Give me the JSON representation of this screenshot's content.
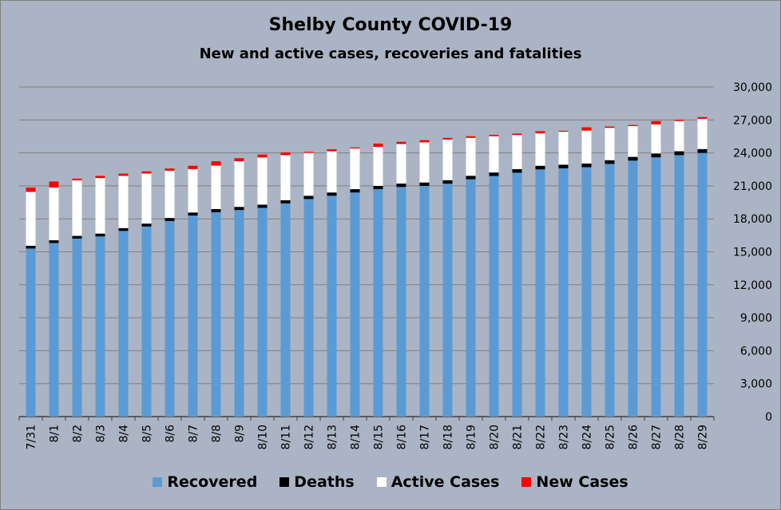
{
  "chart_data": {
    "type": "bar",
    "stacked": true,
    "title": "Shelby County COVID-19",
    "subtitle": "New and active cases, recoveries and fatalities",
    "categories": [
      "7/31",
      "8/1",
      "8/2",
      "8/3",
      "8/4",
      "8/5",
      "8/6",
      "8/7",
      "8/8",
      "8/9",
      "8/10",
      "8/11",
      "8/12",
      "8/13",
      "8/14",
      "8/15",
      "8/16",
      "8/17",
      "8/18",
      "8/19",
      "8/20",
      "8/21",
      "8/22",
      "8/23",
      "8/24",
      "8/25",
      "8/26",
      "8/27",
      "8/28",
      "8/29"
    ],
    "series": [
      {
        "name": "Recovered",
        "color": "#5b9bd5",
        "values": [
          15300,
          15800,
          16200,
          16400,
          16900,
          17300,
          17800,
          18300,
          18600,
          18800,
          19000,
          19400,
          19800,
          20100,
          20400,
          20700,
          20900,
          21000,
          21200,
          21600,
          21900,
          22200,
          22500,
          22600,
          22700,
          23000,
          23300,
          23600,
          23800,
          24000
        ]
      },
      {
        "name": "Deaths",
        "color": "#000000",
        "values": [
          250,
          250,
          250,
          260,
          260,
          270,
          280,
          280,
          290,
          290,
          290,
          300,
          300,
          300,
          300,
          300,
          310,
          310,
          320,
          320,
          320,
          330,
          330,
          330,
          340,
          340,
          340,
          350,
          350,
          350
        ]
      },
      {
        "name": "Active Cases",
        "color": "#ffffff",
        "values": [
          4900,
          4800,
          5050,
          5050,
          4750,
          4550,
          4300,
          3950,
          3950,
          4150,
          4300,
          4100,
          3900,
          3750,
          3700,
          3550,
          3600,
          3650,
          3700,
          3450,
          3300,
          3100,
          2950,
          3000,
          2990,
          2940,
          2800,
          2650,
          2750,
          2750
        ]
      },
      {
        "name": "New Cases",
        "color": "#ff0000",
        "values": [
          400,
          550,
          160,
          200,
          210,
          200,
          200,
          300,
          400,
          280,
          260,
          250,
          100,
          180,
          100,
          300,
          200,
          200,
          150,
          150,
          130,
          130,
          200,
          80,
          300,
          120,
          100,
          300,
          100,
          160
        ]
      }
    ],
    "ylim": [
      0,
      30000
    ],
    "yticks": [
      "0",
      "3,000",
      "6,000",
      "9,000",
      "12,000",
      "15,000",
      "18,000",
      "21,000",
      "24,000",
      "27,000",
      "30,000"
    ],
    "ytick_values": [
      0,
      3000,
      6000,
      9000,
      12000,
      15000,
      18000,
      21000,
      24000,
      27000,
      30000
    ],
    "y_axis_position": "right",
    "grid": true,
    "legend_position": "bottom"
  }
}
